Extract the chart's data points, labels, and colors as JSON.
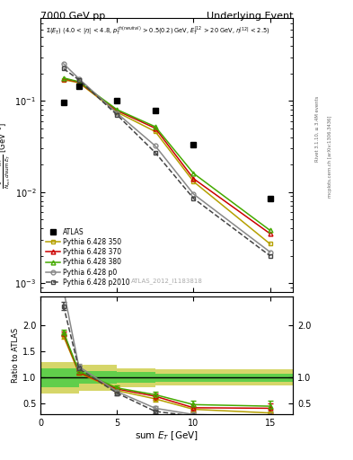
{
  "title_left": "7000 GeV pp",
  "title_right": "Underlying Event",
  "ylabel_main": "$\\frac{1}{N_{evt}}\\frac{dN_{evt}}{d\\,\\mathrm{sum}\\,E_T}$ [GeV$^{-1}$]",
  "ylabel_ratio": "Ratio to ATLAS",
  "xlabel": "sum $E_T$ [GeV]",
  "watermark": "ATLAS_2012_I1183818",
  "rivet_label": "Rivet 3.1.10, ≥ 3.4M events",
  "arxiv_label": "mcplots.cern.ch [arXiv:1306.3436]",
  "atlas_x": [
    1.5,
    2.5,
    5.0,
    7.5,
    10.0,
    15.0
  ],
  "atlas_y": [
    0.095,
    0.145,
    0.1,
    0.078,
    0.033,
    0.0085
  ],
  "py350_x": [
    1.5,
    2.5,
    5.0,
    7.5,
    10.0,
    15.0
  ],
  "py350_y": [
    0.17,
    0.158,
    0.075,
    0.046,
    0.013,
    0.0027
  ],
  "py370_x": [
    1.5,
    2.5,
    5.0,
    7.5,
    10.0,
    15.0
  ],
  "py370_y": [
    0.175,
    0.16,
    0.078,
    0.05,
    0.014,
    0.0035
  ],
  "py380_x": [
    1.5,
    2.5,
    5.0,
    7.5,
    10.0,
    15.0
  ],
  "py380_y": [
    0.178,
    0.162,
    0.08,
    0.052,
    0.016,
    0.0038
  ],
  "pyp0_x": [
    1.5,
    2.5,
    5.0,
    7.5,
    10.0,
    15.0
  ],
  "pyp0_y": [
    0.255,
    0.175,
    0.073,
    0.032,
    0.0095,
    0.0022
  ],
  "pyp2010_x": [
    1.5,
    2.5,
    5.0,
    7.5,
    10.0,
    15.0
  ],
  "pyp2010_y": [
    0.225,
    0.17,
    0.07,
    0.027,
    0.0085,
    0.002
  ],
  "ratio_py350_x": [
    1.5,
    2.5,
    5.0,
    7.5,
    10.0,
    15.0
  ],
  "ratio_py350_y": [
    1.79,
    1.09,
    0.75,
    0.59,
    0.39,
    0.32
  ],
  "ratio_py350_yerr": [
    0.05,
    0.04,
    0.04,
    0.05,
    0.06,
    0.08
  ],
  "ratio_py370_x": [
    1.5,
    2.5,
    5.0,
    7.5,
    10.0,
    15.0
  ],
  "ratio_py370_y": [
    1.84,
    1.1,
    0.78,
    0.64,
    0.42,
    0.41
  ],
  "ratio_py370_yerr": [
    0.05,
    0.04,
    0.04,
    0.06,
    0.07,
    0.1
  ],
  "ratio_py380_x": [
    1.5,
    2.5,
    5.0,
    7.5,
    10.0,
    15.0
  ],
  "ratio_py380_y": [
    1.87,
    1.12,
    0.8,
    0.67,
    0.48,
    0.45
  ],
  "ratio_py380_yerr": [
    0.05,
    0.04,
    0.04,
    0.06,
    0.07,
    0.1
  ],
  "ratio_pyp0_x": [
    1.5,
    2.5,
    5.0,
    7.5,
    10.0,
    15.0
  ],
  "ratio_pyp0_y": [
    2.68,
    1.21,
    0.73,
    0.41,
    0.29,
    0.26
  ],
  "ratio_pyp0_yerr": [
    0.1,
    0.05,
    0.04,
    0.05,
    0.05,
    0.07
  ],
  "ratio_pyp2010_x": [
    1.5,
    2.5,
    5.0,
    7.5,
    10.0,
    15.0
  ],
  "ratio_pyp2010_y": [
    2.37,
    1.17,
    0.7,
    0.35,
    0.26,
    0.24
  ],
  "ratio_pyp2010_yerr": [
    0.08,
    0.05,
    0.04,
    0.04,
    0.05,
    0.06
  ],
  "band_x_edges": [
    0.0,
    2.5,
    5.0,
    7.5,
    10.0,
    16.5
  ],
  "band_outer_lo": [
    0.7,
    0.75,
    0.82,
    0.85,
    0.85,
    0.85
  ],
  "band_outer_hi": [
    1.3,
    1.25,
    1.18,
    1.15,
    1.15,
    1.15
  ],
  "band_inner_lo": [
    0.82,
    0.88,
    0.9,
    0.92,
    0.92,
    0.92
  ],
  "band_inner_hi": [
    1.18,
    1.12,
    1.1,
    1.08,
    1.08,
    1.08
  ],
  "color_350": "#b5a000",
  "color_370": "#cc0000",
  "color_380": "#44aa00",
  "color_p0": "#888888",
  "color_p2010": "#444444",
  "color_atlas": "#000000",
  "color_band_inner": "#44cc44",
  "color_band_outer": "#cccc44",
  "xlim": [
    0,
    16.5
  ],
  "ylim_main": [
    0.0008,
    0.8
  ],
  "ylim_ratio": [
    0.3,
    2.55
  ],
  "xticks": [
    0,
    5,
    10,
    15
  ],
  "yticks_ratio": [
    0.5,
    1.0,
    1.5,
    2.0
  ]
}
